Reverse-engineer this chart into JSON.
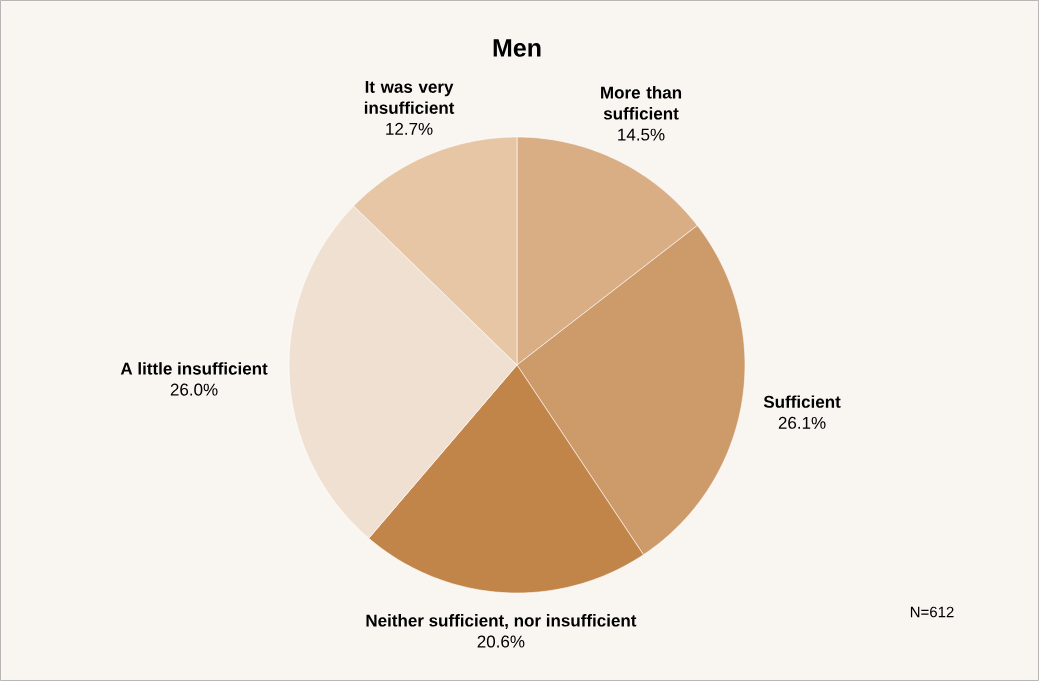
{
  "chart_data": {
    "type": "pie",
    "title": "Men",
    "categories": [
      "More than sufficient",
      "Sufficient",
      "Neither sufficient, nor insufficient",
      "A little insufficient",
      "It was very insufficient"
    ],
    "values": [
      14.5,
      26.1,
      20.6,
      26.0,
      12.7
    ],
    "value_labels": [
      "14.5%",
      "26.1%",
      "20.6%",
      "26.0%",
      "12.7%"
    ],
    "colors": [
      "#d9ae85",
      "#cd9a6a",
      "#c28549",
      "#f0e0d2",
      "#e6c6a5"
    ],
    "annotations": [
      "N=612"
    ]
  }
}
